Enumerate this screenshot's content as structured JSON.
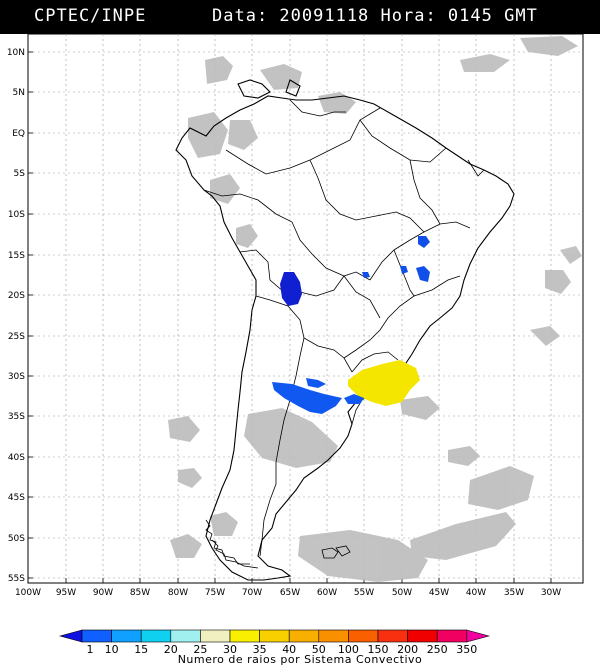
{
  "header": {
    "source": "CPTEC/INPE",
    "datetime": "Data: 20091118 Hora: 0145 GMT"
  },
  "map": {
    "lat_labels": [
      "10N",
      "5N",
      "EQ",
      "5S",
      "10S",
      "15S",
      "20S",
      "25S",
      "30S",
      "35S",
      "40S",
      "45S",
      "50S",
      "55S"
    ],
    "lon_labels": [
      "100W",
      "95W",
      "90W",
      "85W",
      "80W",
      "75W",
      "70W",
      "65W",
      "60W",
      "55W",
      "50W",
      "45W",
      "40W",
      "35W",
      "30W"
    ],
    "colors": {
      "land_outline": "#000000",
      "cloud": "#b9b9b9",
      "blue": "#1040e0",
      "dark_blue": "#1020d0",
      "yellow": "#f5e800"
    }
  },
  "colorbar": {
    "labels": [
      "1",
      "10",
      "15",
      "20",
      "25",
      "30",
      "35",
      "40",
      "50",
      "100",
      "150",
      "200",
      "250",
      "350"
    ],
    "title": "Numero de raios por Sistema Convectivo",
    "colors": [
      "#1010e0",
      "#1060ff",
      "#10a0ff",
      "#10d0f0",
      "#a0f0f0",
      "#f0f0c0",
      "#f8f000",
      "#f8d000",
      "#f8b000",
      "#f89000",
      "#f86000",
      "#f83010",
      "#f00000",
      "#f00060",
      "#f000a0"
    ]
  }
}
